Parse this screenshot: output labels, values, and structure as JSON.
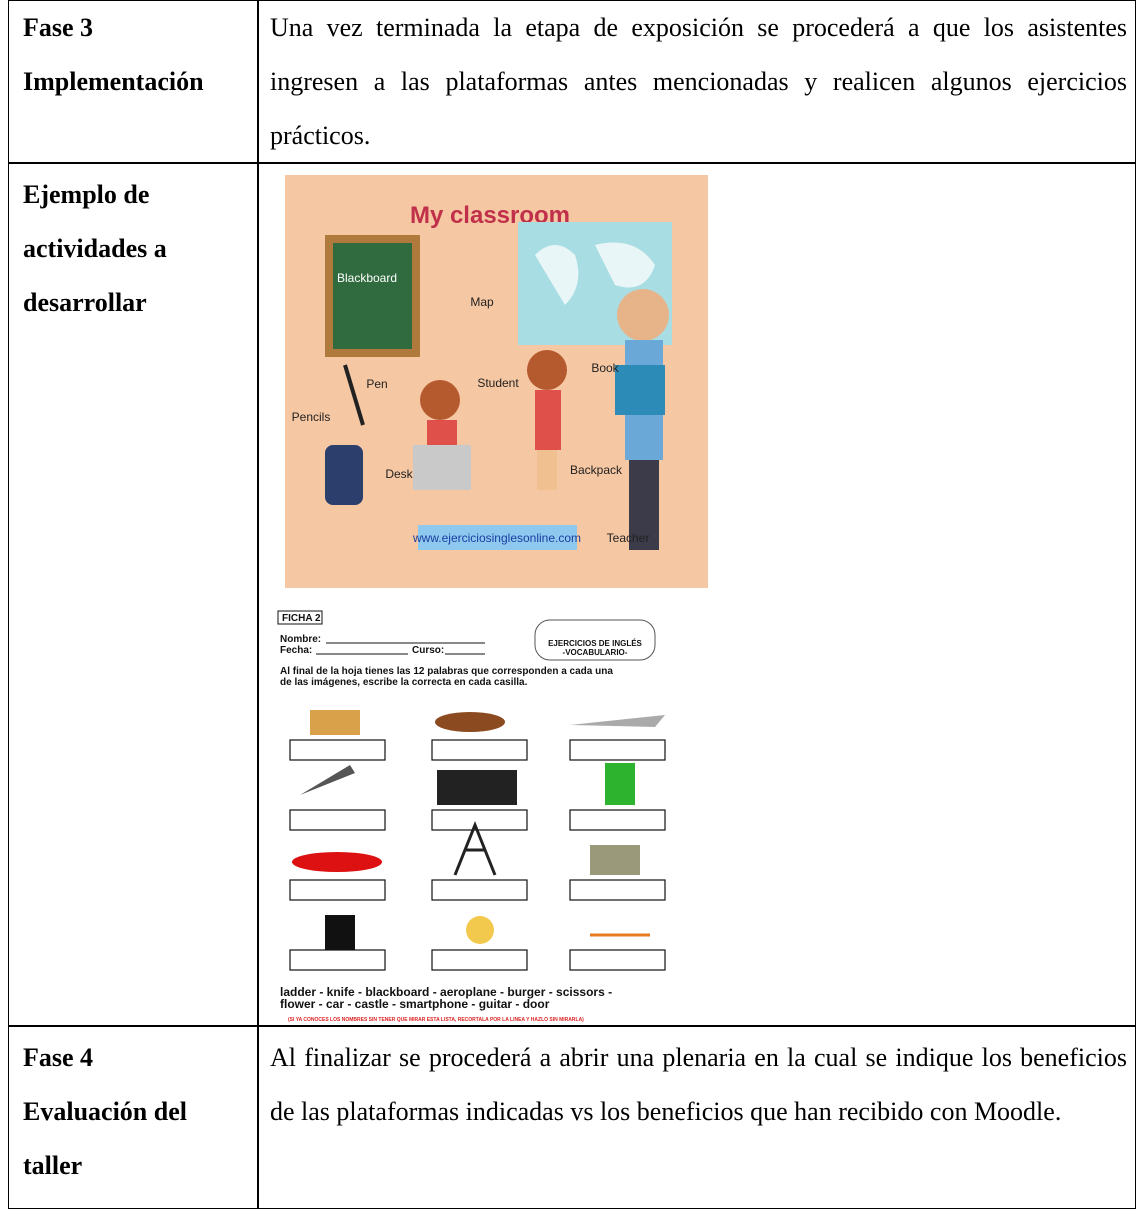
{
  "table": {
    "rows": [
      {
        "label": [
          "Fase 3",
          "Implementación"
        ],
        "text": "Una vez terminada la etapa de exposición se procederá a que los asistentes ingresen a las plataformas antes mencionadas y realicen algunos ejercicios prácticos."
      },
      {
        "label": [
          "Ejemplo de",
          "actividades a",
          "desarrollar"
        ],
        "classroom": {
          "title": "My classroom",
          "labels": [
            "Blackboard",
            "Map",
            "Pen",
            "Pencils",
            "Student",
            "Book",
            "Desk",
            "Backpack",
            "Teacher"
          ],
          "url": "www.ejerciciosinglesonline.com"
        },
        "worksheet": {
          "ficha": "FICHA 2",
          "nombre": "Nombre:",
          "fecha": "Fecha:",
          "curso": "Curso:",
          "heading": [
            "EJERCICIOS DE INGLÉS",
            "-VOCABULARIO-"
          ],
          "instructions": [
            "Al final de la hoja tienes las 12 palabras que corresponden a cada una",
            "de las imágenes, escribe la correcta en cada casilla."
          ],
          "words": [
            "ladder - knife - blackboard - aeroplane - burger - scissors -",
            "flower - car - castle - smartphone - guitar - door"
          ],
          "note": "(SI YA CONOCES LOS NOMBRES SIN TENER QUE MIRAR ESTA LISTA, RECORTALA POR LA LINEA Y HAZLO SIN MIRARLA)"
        }
      },
      {
        "label": [
          "Fase 4",
          "Evaluación del",
          "taller"
        ],
        "text": "Al finalizar se procederá a abrir una plenaria en la cual se indique los beneficios de las plataformas indicadas vs los beneficios que han recibido con Moodle."
      }
    ]
  }
}
